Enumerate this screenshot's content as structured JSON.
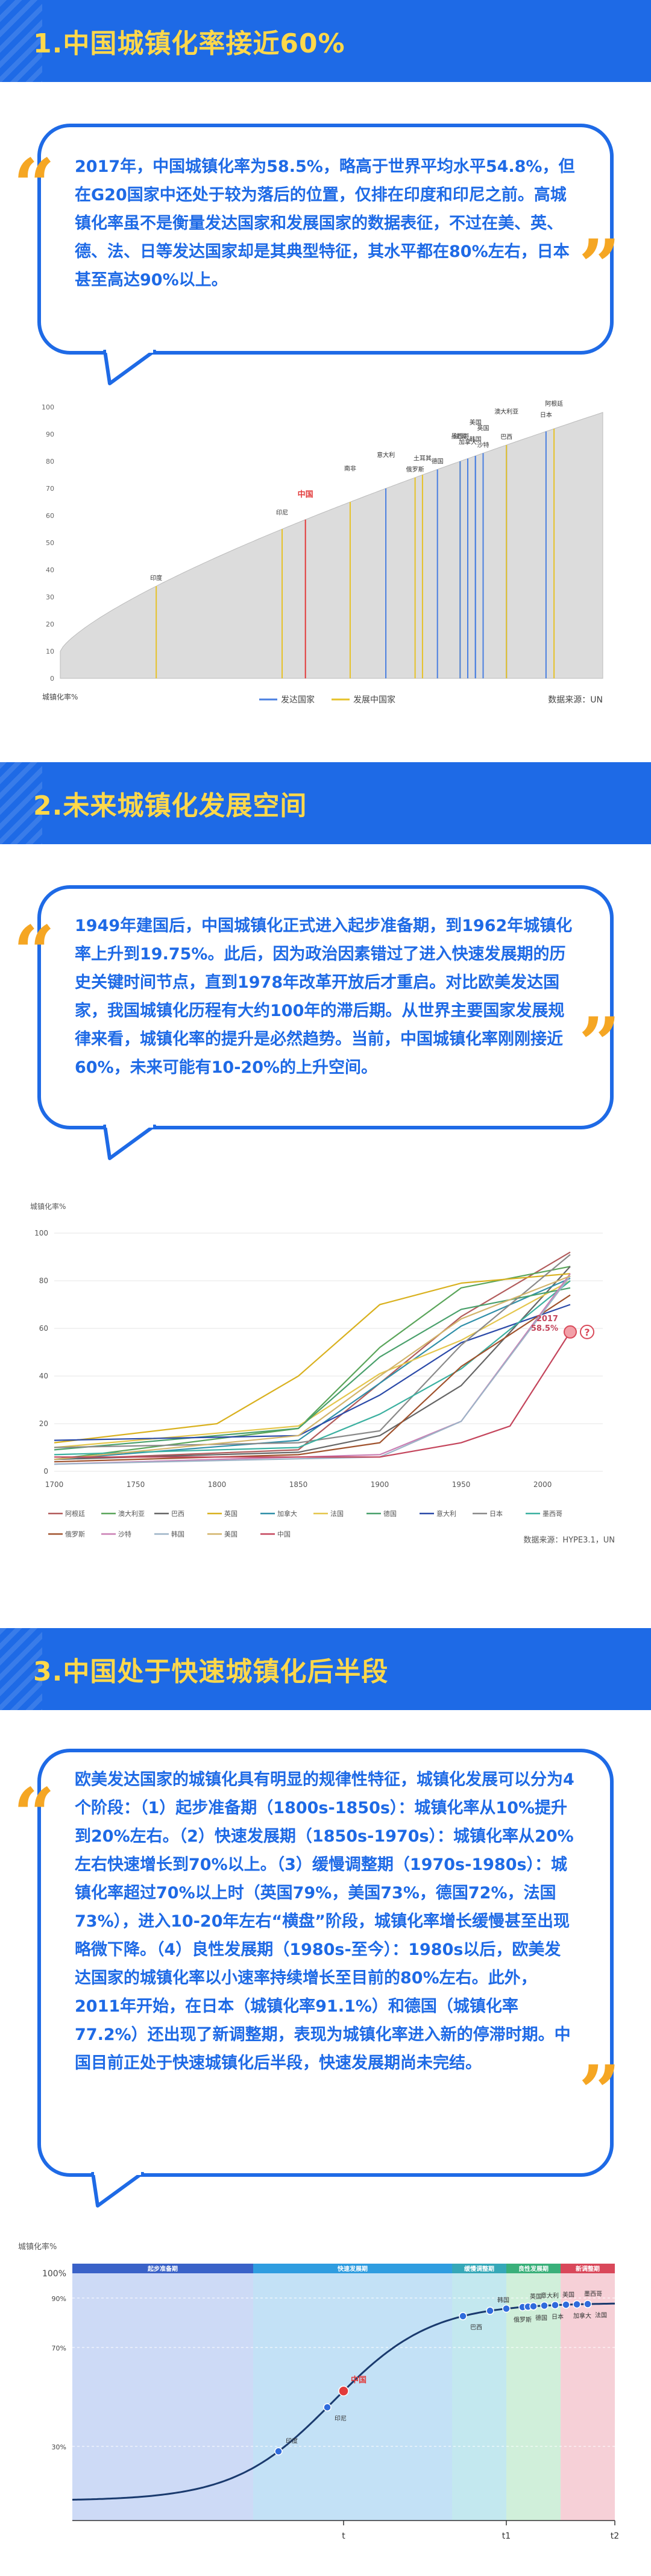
{
  "sections": [
    {
      "title": "1.中国城镇化率接近60%",
      "text": "2017年，中国城镇化率为58.5%，略高于世界平均水平54.8%，但在G20国家中还处于较为落后的位置，仅排在印度和印尼之前。高城镇化率虽不是衡量发达国家和发展国家的数据表征，不过在美、英、德、法、日等发达国家却是其典型特征，其水平都在80%左右，日本甚至高达90%以上。"
    },
    {
      "title": "2.未来城镇化发展空间",
      "text": "1949年建国后，中国城镇化正式进入起步准备期，到1962年城镇化率上升到19.75%。此后，因为政治因素错过了进入快速发展期的历史关键时间节点，直到1978年改革开放后才重启。对比欧美发达国家，我国城镇化历程有大约100年的滞后期。从世界主要国家发展规律来看，城镇化率的提升是必然趋势。当前，中国城镇化率刚刚接近60%，未来可能有10-20%的上升空间。"
    },
    {
      "title": "3.中国处于快速城镇化后半段",
      "text": "欧美发达国家的城镇化具有明显的规律性特征，城镇化发展可以分为4个阶段：（1）起步准备期（1800s-1850s）：城镇化率从10%提升到20%左右。（2）快速发展期（1850s-1970s）：城镇化率从20%左右快速增长到70%以上。（3）缓慢调整期（1970s-1980s）：城镇化率超过70%以上时（英国79%，美国73%，德国72%，法国73%），进入10-20年左右“横盘”阶段，城镇化率增长缓慢甚至出现略微下降。（4）良性发展期（1980s-至今）：1980s以后，欧美发达国家的城镇化率以小速率持续增长至目前的80%左右。此外，2011年开始，在日本（城镇化率91.1%）和德国（城镇化率77.2%）还出现了新调整期，表现为城镇化率进入新的停滞时期。中国目前正处于快速城镇化后半段，快速发展期尚未完结。"
    }
  ],
  "quote_open": "“",
  "quote_close": "”",
  "chart_data": [
    {
      "type": "area",
      "title": "",
      "xlabel": "城镇化率%",
      "ylabel": "",
      "ylim": [
        0,
        100
      ],
      "yticks": [
        "100",
        "90",
        "80",
        "70",
        "60",
        "50",
        "40",
        "30",
        "20",
        "10",
        "0"
      ],
      "highlight": "中国",
      "countries": [
        {
          "name": "印度",
          "value": 34,
          "group": "developing"
        },
        {
          "name": "印尼",
          "value": 55,
          "group": "developing"
        },
        {
          "name": "中国",
          "value": 58.5,
          "group": "developing"
        },
        {
          "name": "南非",
          "value": 65,
          "group": "developing"
        },
        {
          "name": "俄罗斯",
          "value": 74,
          "group": "developing"
        },
        {
          "name": "土耳其",
          "value": 75,
          "group": "developing"
        },
        {
          "name": "墨西哥",
          "value": 80,
          "group": "developing"
        },
        {
          "name": "意大利",
          "value": 70,
          "group": "developed"
        },
        {
          "name": "德国",
          "value": 77,
          "group": "developed"
        },
        {
          "name": "韩国",
          "value": 82,
          "group": "developed"
        },
        {
          "name": "法国",
          "value": 80,
          "group": "developed"
        },
        {
          "name": "美国",
          "value": 82,
          "group": "developed"
        },
        {
          "name": "沙特",
          "value": 83,
          "group": "developing"
        },
        {
          "name": "加拿大",
          "value": 81,
          "group": "developed"
        },
        {
          "name": "英国",
          "value": 83,
          "group": "developed"
        },
        {
          "name": "澳大利亚",
          "value": 86,
          "group": "developed"
        },
        {
          "name": "巴西",
          "value": 86,
          "group": "developing"
        },
        {
          "name": "日本",
          "value": 91,
          "group": "developed"
        },
        {
          "name": "阿根廷",
          "value": 92,
          "group": "developing"
        }
      ],
      "legend": [
        "发达国家",
        "发展中国家"
      ],
      "colors": {
        "developed": "#4a7fe0",
        "developing": "#e6c229",
        "highlight": "#e23b3b",
        "area": "#dcdcdc"
      },
      "source": "数据来源：UN"
    },
    {
      "type": "line",
      "title": "",
      "ylabel": "城镇化率%",
      "xlim": [
        1700,
        2017
      ],
      "ylim": [
        0,
        100
      ],
      "xticks": [
        "1700",
        "1750",
        "1800",
        "1850",
        "1900",
        "1950",
        "2000"
      ],
      "yticks": [
        "0",
        "20",
        "40",
        "60",
        "80",
        "100"
      ],
      "annotation": {
        "year": "2017",
        "value": "58.5%",
        "mark": "?"
      },
      "series": [
        {
          "name": "阿根廷",
          "color": "#b25c5c",
          "x": [
            1700,
            1850,
            1900,
            1950,
            2017
          ],
          "y": [
            5,
            9,
            37,
            65,
            92
          ]
        },
        {
          "name": "澳大利亚",
          "color": "#5aa55a",
          "x": [
            1700,
            1850,
            1900,
            1950,
            2017
          ],
          "y": [
            5,
            18,
            52,
            77,
            86
          ]
        },
        {
          "name": "巴西",
          "color": "#666666",
          "x": [
            1700,
            1850,
            1900,
            1950,
            2017
          ],
          "y": [
            5,
            8,
            15,
            36,
            86
          ]
        },
        {
          "name": "英国",
          "color": "#d9b11f",
          "x": [
            1700,
            1800,
            1850,
            1900,
            1950,
            2017
          ],
          "y": [
            12,
            20,
            40,
            70,
            79,
            83
          ]
        },
        {
          "name": "加拿大",
          "color": "#2f8fa8",
          "x": [
            1700,
            1850,
            1900,
            1950,
            2017
          ],
          "y": [
            5,
            13,
            37,
            61,
            81
          ]
        },
        {
          "name": "法国",
          "color": "#e4c64c",
          "x": [
            1700,
            1850,
            1900,
            1950,
            2017
          ],
          "y": [
            10,
            19,
            41,
            55,
            80
          ]
        },
        {
          "name": "德国",
          "color": "#49a06b",
          "x": [
            1700,
            1850,
            1900,
            1950,
            2017
          ],
          "y": [
            9,
            18,
            48,
            68,
            77
          ]
        },
        {
          "name": "意大利",
          "color": "#2b4aa8",
          "x": [
            1700,
            1850,
            1900,
            1950,
            2017
          ],
          "y": [
            13,
            15,
            32,
            54,
            70
          ]
        },
        {
          "name": "日本",
          "color": "#8a8a8a",
          "x": [
            1700,
            1850,
            1900,
            1950,
            2017
          ],
          "y": [
            10,
            12,
            17,
            53,
            91
          ]
        },
        {
          "name": "墨西哥",
          "color": "#3bb0a0",
          "x": [
            1700,
            1850,
            1900,
            1950,
            2017
          ],
          "y": [
            7,
            10,
            24,
            43,
            80
          ]
        },
        {
          "name": "俄罗斯",
          "color": "#a0522d",
          "x": [
            1700,
            1850,
            1900,
            1950,
            2017
          ],
          "y": [
            4,
            7,
            12,
            44,
            74
          ]
        },
        {
          "name": "沙特",
          "color": "#c97fb4",
          "x": [
            1700,
            1900,
            1950,
            2017
          ],
          "y": [
            3,
            7,
            21,
            83
          ]
        },
        {
          "name": "韩国",
          "color": "#9db3c7",
          "x": [
            1700,
            1900,
            1950,
            2017
          ],
          "y": [
            3,
            6,
            21,
            82
          ]
        },
        {
          "name": "美国",
          "color": "#d2b46a",
          "x": [
            1700,
            1850,
            1900,
            1950,
            2017
          ],
          "y": [
            5,
            15,
            40,
            64,
            82
          ]
        },
        {
          "name": "中国",
          "color": "#c4455c",
          "x": [
            1700,
            1900,
            1950,
            1980,
            2017
          ],
          "y": [
            6,
            6,
            12,
            19,
            58.5
          ]
        }
      ],
      "source": "数据来源：HYPE3.1，UN"
    },
    {
      "type": "line",
      "title": "",
      "ylabel": "城镇化率%",
      "yticks": [
        "100%",
        "90%",
        "70%",
        "30%"
      ],
      "stages": [
        {
          "label": "起步准备期",
          "color": "#c4d4f4"
        },
        {
          "label": "快速发展期",
          "color": "#b8dcf4"
        },
        {
          "label": "缓慢调整期",
          "color": "#b8e4ec"
        },
        {
          "label": "良性发展期",
          "color": "#c8ecd4"
        },
        {
          "label": "新调整期",
          "color": "#f4c8d0"
        }
      ],
      "xticks": [
        "t",
        "t1",
        "t2"
      ],
      "points": [
        "印度",
        "印尼",
        "中国",
        "巴西",
        "韩国",
        "俄罗斯",
        "英国",
        "德国",
        "意大利",
        "日本",
        "美国",
        "加拿大",
        "墨西哥",
        "法国"
      ]
    }
  ]
}
